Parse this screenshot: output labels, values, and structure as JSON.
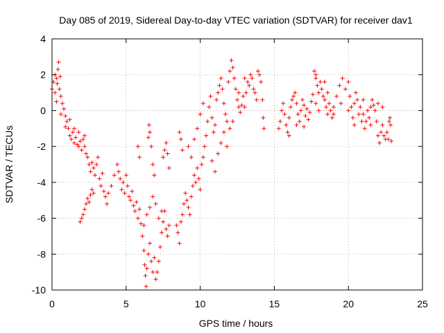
{
  "chart_data": {
    "type": "scatter",
    "title": "Day 085 of 2019, Sidereal Day-to-day VTEC variation (SDTVAR) for receiver dav1",
    "xlabel": "GPS time / hours",
    "ylabel": "SDTVAR / TECUs",
    "xlim": [
      0,
      25
    ],
    "ylim": [
      -10,
      4
    ],
    "xticks": [
      "0",
      "5",
      "10",
      "15",
      "20",
      "25"
    ],
    "yticks": [
      "-10",
      "-8",
      "-6",
      "-4",
      "-2",
      "0",
      "2",
      "4"
    ],
    "grid": true,
    "marker": "+",
    "series": [
      {
        "name": "dav1",
        "color": "#ff0000",
        "points": [
          [
            0.0,
            1.2
          ],
          [
            0.1,
            1.6
          ],
          [
            0.2,
            1.0
          ],
          [
            0.3,
            1.8
          ],
          [
            0.4,
            2.3
          ],
          [
            0.45,
            2.7
          ],
          [
            0.5,
            1.2
          ],
          [
            0.6,
            0.8
          ],
          [
            0.7,
            0.4
          ],
          [
            0.8,
            0.1
          ],
          [
            0.9,
            -0.3
          ],
          [
            1.0,
            -0.6
          ],
          [
            1.1,
            -1.0
          ],
          [
            1.2,
            -1.4
          ],
          [
            1.3,
            -1.6
          ],
          [
            1.4,
            -1.2
          ],
          [
            1.5,
            -1.8
          ],
          [
            1.6,
            -1.5
          ],
          [
            1.7,
            -1.9
          ],
          [
            1.8,
            -2.0
          ],
          [
            1.9,
            -1.7
          ],
          [
            2.0,
            -2.2
          ],
          [
            2.1,
            -1.6
          ],
          [
            2.2,
            -2.0
          ],
          [
            2.3,
            -2.4
          ],
          [
            2.4,
            -2.6
          ],
          [
            2.5,
            -3.0
          ],
          [
            2.6,
            -3.4
          ],
          [
            2.7,
            -2.9
          ],
          [
            2.8,
            -3.2
          ],
          [
            2.9,
            -3.6
          ],
          [
            3.0,
            -3.0
          ],
          [
            3.1,
            -2.6
          ],
          [
            3.2,
            -3.8
          ],
          [
            3.3,
            -4.2
          ],
          [
            3.4,
            -3.5
          ],
          [
            3.5,
            -4.5
          ],
          [
            3.6,
            -4.8
          ],
          [
            3.7,
            -5.2
          ],
          [
            3.8,
            -4.6
          ],
          [
            1.9,
            -6.2
          ],
          [
            2.0,
            -6.0
          ],
          [
            2.1,
            -5.8
          ],
          [
            2.2,
            -5.5
          ],
          [
            2.3,
            -5.2
          ],
          [
            2.4,
            -4.9
          ],
          [
            2.5,
            -5.1
          ],
          [
            2.6,
            -4.7
          ],
          [
            2.7,
            -4.4
          ],
          [
            2.8,
            -4.6
          ],
          [
            0.3,
            0.5
          ],
          [
            0.6,
            -0.2
          ],
          [
            0.9,
            -0.9
          ],
          [
            1.2,
            -0.5
          ],
          [
            1.5,
            -1.0
          ],
          [
            1.8,
            -1.2
          ],
          [
            2.2,
            -1.4
          ],
          [
            0.2,
            2.0
          ],
          [
            0.35,
            1.5
          ],
          [
            0.55,
            1.9
          ],
          [
            4.0,
            -4.2
          ],
          [
            4.2,
            -3.6
          ],
          [
            4.4,
            -3.0
          ],
          [
            4.5,
            -3.4
          ],
          [
            4.6,
            -3.8
          ],
          [
            4.7,
            -4.4
          ],
          [
            4.8,
            -4.0
          ],
          [
            4.9,
            -4.6
          ],
          [
            5.0,
            -3.6
          ],
          [
            5.1,
            -4.2
          ],
          [
            5.2,
            -4.8
          ],
          [
            5.3,
            -5.0
          ],
          [
            5.4,
            -4.5
          ],
          [
            5.5,
            -5.3
          ],
          [
            5.6,
            -5.6
          ],
          [
            5.7,
            -5.1
          ],
          [
            5.8,
            -6.0
          ],
          [
            5.9,
            -5.5
          ],
          [
            6.0,
            -6.3
          ],
          [
            6.1,
            -7.0
          ],
          [
            6.2,
            -7.8
          ],
          [
            6.25,
            -8.6
          ],
          [
            6.3,
            -9.2
          ],
          [
            6.35,
            -9.8
          ],
          [
            6.4,
            -8.8
          ],
          [
            6.5,
            -8.0
          ],
          [
            6.6,
            -7.4
          ],
          [
            6.7,
            -8.4
          ],
          [
            6.8,
            -9.0
          ],
          [
            6.9,
            -8.2
          ],
          [
            7.0,
            -9.4
          ],
          [
            7.1,
            -9.0
          ],
          [
            7.2,
            -8.4
          ],
          [
            7.3,
            -7.6
          ],
          [
            7.4,
            -6.8
          ],
          [
            7.5,
            -6.2
          ],
          [
            7.6,
            -5.6
          ],
          [
            7.7,
            -6.6
          ],
          [
            7.8,
            -7.0
          ],
          [
            7.9,
            -6.4
          ],
          [
            6.2,
            -6.4
          ],
          [
            6.4,
            -5.8
          ],
          [
            6.6,
            -5.4
          ],
          [
            6.8,
            -4.8
          ],
          [
            7.0,
            -5.2
          ],
          [
            7.2,
            -6.0
          ],
          [
            7.4,
            -5.6
          ],
          [
            6.5,
            -1.5
          ],
          [
            6.55,
            -0.8
          ],
          [
            6.6,
            -1.2
          ],
          [
            6.7,
            -2.0
          ],
          [
            6.8,
            -3.0
          ],
          [
            6.9,
            -3.6
          ],
          [
            7.5,
            -2.6
          ],
          [
            7.6,
            -2.2
          ],
          [
            7.7,
            -1.8
          ],
          [
            7.8,
            -2.4
          ],
          [
            7.9,
            -3.2
          ],
          [
            5.8,
            -2.0
          ],
          [
            5.9,
            -2.6
          ],
          [
            8.4,
            -6.4
          ],
          [
            8.5,
            -6.8
          ],
          [
            8.6,
            -7.4
          ],
          [
            8.7,
            -6.2
          ],
          [
            8.8,
            -5.8
          ],
          [
            8.9,
            -5.2
          ],
          [
            9.0,
            -4.6
          ],
          [
            9.1,
            -5.0
          ],
          [
            9.2,
            -5.4
          ],
          [
            9.3,
            -5.8
          ],
          [
            9.4,
            -4.8
          ],
          [
            9.5,
            -4.2
          ],
          [
            9.6,
            -3.6
          ],
          [
            9.7,
            -4.0
          ],
          [
            9.8,
            -3.2
          ],
          [
            9.9,
            -3.8
          ],
          [
            10.0,
            -4.4
          ],
          [
            10.1,
            -3.0
          ],
          [
            10.2,
            -2.6
          ],
          [
            10.3,
            -2.0
          ],
          [
            8.6,
            -1.2
          ],
          [
            8.7,
            -1.6
          ],
          [
            8.8,
            -2.2
          ],
          [
            9.2,
            -2.0
          ],
          [
            9.4,
            -2.6
          ],
          [
            9.6,
            -1.6
          ],
          [
            9.8,
            -1.0
          ],
          [
            10.0,
            -0.2
          ],
          [
            10.2,
            0.4
          ],
          [
            10.4,
            -1.4
          ],
          [
            10.5,
            -0.6
          ],
          [
            10.6,
            0.2
          ],
          [
            10.7,
            0.8
          ],
          [
            10.8,
            -0.4
          ],
          [
            10.9,
            -1.2
          ],
          [
            11.0,
            -0.8
          ],
          [
            11.1,
            0.6
          ],
          [
            11.2,
            1.0
          ],
          [
            11.3,
            1.4
          ],
          [
            11.4,
            1.8
          ],
          [
            11.5,
            1.2
          ],
          [
            11.6,
            0.4
          ],
          [
            11.7,
            -0.2
          ],
          [
            11.8,
            -0.6
          ],
          [
            11.9,
            1.6
          ],
          [
            12.0,
            2.2
          ],
          [
            12.1,
            2.8
          ],
          [
            12.2,
            2.4
          ],
          [
            12.3,
            1.8
          ],
          [
            12.4,
            1.2
          ],
          [
            12.5,
            0.6
          ],
          [
            12.6,
            0.2
          ],
          [
            12.7,
            -0.1
          ],
          [
            12.8,
            0.3
          ],
          [
            12.9,
            0.8
          ],
          [
            13.0,
            0.2
          ],
          [
            13.1,
            1.0
          ],
          [
            13.2,
            1.6
          ],
          [
            13.3,
            1.4
          ],
          [
            13.4,
            2.0
          ],
          [
            13.5,
            1.8
          ],
          [
            13.6,
            1.2
          ],
          [
            13.7,
            1.0
          ],
          [
            13.8,
            0.6
          ],
          [
            13.9,
            2.2
          ],
          [
            14.0,
            2.0
          ],
          [
            14.1,
            1.6
          ],
          [
            14.2,
            0.6
          ],
          [
            14.25,
            -0.4
          ],
          [
            14.3,
            -1.0
          ],
          [
            11.2,
            -2.4
          ],
          [
            11.4,
            -1.8
          ],
          [
            11.6,
            -1.2
          ],
          [
            11.8,
            -2.0
          ],
          [
            12.0,
            -1.0
          ],
          [
            11.0,
            -3.4
          ],
          [
            10.8,
            -2.8
          ],
          [
            12.2,
            -0.6
          ],
          [
            12.6,
            1.0
          ],
          [
            13.0,
            1.8
          ],
          [
            15.3,
            -1.0
          ],
          [
            15.4,
            -0.6
          ],
          [
            15.5,
            0.0
          ],
          [
            15.6,
            0.4
          ],
          [
            15.7,
            -0.2
          ],
          [
            15.8,
            -0.8
          ],
          [
            15.9,
            -1.2
          ],
          [
            16.0,
            -0.4
          ],
          [
            16.1,
            0.2
          ],
          [
            16.2,
            0.6
          ],
          [
            16.3,
            0.8
          ],
          [
            16.4,
            1.0
          ],
          [
            16.5,
            0.4
          ],
          [
            16.6,
            -0.2
          ],
          [
            16.7,
            -0.6
          ],
          [
            16.8,
            0.0
          ],
          [
            16.9,
            0.6
          ],
          [
            17.0,
            0.3
          ],
          [
            17.1,
            -0.3
          ],
          [
            17.2,
            0.1
          ],
          [
            17.3,
            -0.5
          ],
          [
            17.4,
            -0.1
          ],
          [
            17.5,
            0.5
          ],
          [
            17.6,
            0.9
          ],
          [
            17.7,
            2.2
          ],
          [
            17.8,
            1.8
          ],
          [
            17.9,
            1.4
          ],
          [
            18.0,
            1.0
          ],
          [
            18.1,
            1.6
          ],
          [
            18.2,
            1.2
          ],
          [
            18.3,
            0.8
          ],
          [
            18.4,
            0.6
          ],
          [
            18.5,
            0.2
          ],
          [
            18.6,
            -0.2
          ],
          [
            18.7,
            0.4
          ],
          [
            18.8,
            0.0
          ],
          [
            18.9,
            -0.4
          ],
          [
            19.0,
            0.2
          ],
          [
            19.2,
            0.8
          ],
          [
            19.4,
            1.4
          ],
          [
            19.6,
            1.8
          ],
          [
            19.8,
            1.2
          ],
          [
            20.0,
            1.6
          ],
          [
            20.1,
            0.8
          ],
          [
            20.2,
            0.2
          ],
          [
            20.3,
            -0.4
          ],
          [
            20.4,
            0.4
          ],
          [
            20.5,
            1.0
          ],
          [
            20.6,
            0.6
          ],
          [
            20.7,
            -0.2
          ],
          [
            20.8,
            0.2
          ],
          [
            20.9,
            -0.6
          ],
          [
            21.0,
            -0.2
          ],
          [
            21.1,
            -1.0
          ],
          [
            21.2,
            -0.6
          ],
          [
            21.3,
            0.0
          ],
          [
            21.4,
            -0.4
          ],
          [
            21.5,
            0.2
          ],
          [
            21.6,
            0.6
          ],
          [
            21.7,
            0.3
          ],
          [
            21.8,
            0.0
          ],
          [
            21.9,
            -0.6
          ],
          [
            22.0,
            -1.4
          ],
          [
            22.1,
            -1.8
          ],
          [
            22.2,
            -1.2
          ],
          [
            22.3,
            -0.8
          ],
          [
            22.4,
            -1.4
          ],
          [
            22.5,
            -1.6
          ],
          [
            22.6,
            -1.2
          ],
          [
            22.7,
            -1.6
          ],
          [
            22.75,
            -0.6
          ],
          [
            22.8,
            -0.4
          ],
          [
            22.85,
            -0.8
          ],
          [
            22.9,
            -1.7
          ],
          [
            17.8,
            0.4
          ],
          [
            18.0,
            0.0
          ],
          [
            18.4,
            1.6
          ],
          [
            18.6,
            1.0
          ],
          [
            19.0,
            -0.2
          ],
          [
            19.5,
            0.4
          ],
          [
            20.0,
            0.0
          ],
          [
            20.4,
            -0.8
          ],
          [
            21.0,
            0.6
          ],
          [
            21.5,
            -0.8
          ],
          [
            22.0,
            0.4
          ],
          [
            22.3,
            0.2
          ],
          [
            16.0,
            -1.4
          ],
          [
            16.5,
            -0.8
          ],
          [
            17.0,
            -0.9
          ],
          [
            17.8,
            2.0
          ]
        ]
      }
    ]
  }
}
